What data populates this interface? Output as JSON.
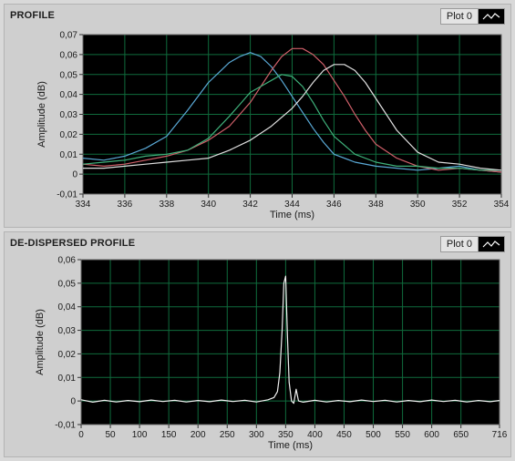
{
  "chart_data": [
    {
      "type": "line",
      "title": "PROFILE",
      "legend": {
        "label": "Plot 0",
        "placement": "top-right"
      },
      "xlabel": "Time (ms)",
      "ylabel": "Amplitude (dB)",
      "xlim": [
        334,
        354
      ],
      "ylim": [
        -0.01,
        0.07
      ],
      "xticks": [
        334,
        336,
        338,
        340,
        342,
        344,
        346,
        348,
        350,
        352,
        354
      ],
      "xtick_labels": [
        "334",
        "336",
        "338",
        "340",
        "342",
        "344",
        "346",
        "348",
        "350",
        "352",
        "354"
      ],
      "yticks": [
        -0.01,
        0,
        0.01,
        0.02,
        0.03,
        0.04,
        0.05,
        0.06,
        0.07
      ],
      "ytick_labels": [
        "-0,01",
        "0",
        "0,01",
        "0,02",
        "0,03",
        "0,04",
        "0,05",
        "0,06",
        "0,07"
      ],
      "grid": true,
      "background": "#000000",
      "grid_color": "#0f6b3c",
      "series": [
        {
          "color": "#5aa9d6",
          "x": [
            334,
            335,
            336,
            337,
            338,
            339,
            340,
            340.5,
            341,
            341.5,
            342,
            342.5,
            343,
            343.5,
            344,
            344.5,
            345,
            345.5,
            346,
            347,
            348,
            349,
            350,
            351,
            352,
            353,
            354
          ],
          "y": [
            0.008,
            0.007,
            0.009,
            0.013,
            0.019,
            0.032,
            0.046,
            0.051,
            0.056,
            0.059,
            0.061,
            0.059,
            0.054,
            0.047,
            0.039,
            0.031,
            0.023,
            0.016,
            0.01,
            0.006,
            0.004,
            0.003,
            0.002,
            0.003,
            0.004,
            0.002,
            0.001
          ]
        },
        {
          "color": "#d0606a",
          "x": [
            334,
            335,
            336,
            337,
            338,
            339,
            340,
            341,
            342,
            342.5,
            343,
            343.5,
            344,
            344.5,
            345,
            345.5,
            346,
            346.5,
            347,
            347.5,
            348,
            349,
            350,
            351,
            352,
            353,
            354
          ],
          "y": [
            0.005,
            0.004,
            0.005,
            0.007,
            0.009,
            0.012,
            0.017,
            0.024,
            0.036,
            0.044,
            0.052,
            0.059,
            0.063,
            0.063,
            0.06,
            0.055,
            0.047,
            0.039,
            0.03,
            0.022,
            0.015,
            0.008,
            0.004,
            0.002,
            0.003,
            0.002,
            0.001
          ]
        },
        {
          "color": "#3fb07a",
          "x": [
            334,
            335,
            336,
            337,
            338,
            339,
            340,
            341,
            341.5,
            342,
            342.5,
            343,
            343.5,
            344,
            344.5,
            345,
            345.5,
            346,
            347,
            348,
            349,
            350,
            351,
            352,
            353,
            354
          ],
          "y": [
            0.005,
            0.006,
            0.007,
            0.009,
            0.01,
            0.012,
            0.018,
            0.029,
            0.035,
            0.041,
            0.044,
            0.047,
            0.05,
            0.049,
            0.044,
            0.036,
            0.027,
            0.019,
            0.01,
            0.006,
            0.004,
            0.004,
            0.003,
            0.003,
            0.002,
            0.002
          ]
        },
        {
          "color": "#e0e0e0",
          "x": [
            334,
            335,
            336,
            337,
            338,
            339,
            340,
            341,
            342,
            343,
            344,
            344.5,
            345,
            345.5,
            346,
            346.5,
            347,
            347.5,
            348,
            348.5,
            349,
            350,
            351,
            352,
            353,
            354
          ],
          "y": [
            0.003,
            0.003,
            0.004,
            0.005,
            0.006,
            0.007,
            0.008,
            0.012,
            0.017,
            0.024,
            0.033,
            0.039,
            0.046,
            0.052,
            0.055,
            0.055,
            0.052,
            0.046,
            0.038,
            0.03,
            0.022,
            0.011,
            0.006,
            0.005,
            0.003,
            0.002
          ]
        }
      ]
    },
    {
      "type": "line",
      "title": "DE-DISPERSED PROFILE",
      "legend": {
        "label": "Plot 0",
        "placement": "top-right"
      },
      "xlabel": "Time (ms)",
      "ylabel": "Amplitude (dB)",
      "xlim": [
        0,
        716
      ],
      "ylim": [
        -0.01,
        0.06
      ],
      "xticks": [
        0,
        50,
        100,
        150,
        200,
        250,
        300,
        350,
        400,
        450,
        500,
        550,
        600,
        650,
        716
      ],
      "xtick_labels": [
        "0",
        "50",
        "100",
        "150",
        "200",
        "250",
        "300",
        "350",
        "400",
        "450",
        "500",
        "550",
        "600",
        "650",
        "716"
      ],
      "yticks": [
        -0.01,
        0,
        0.01,
        0.02,
        0.03,
        0.04,
        0.05,
        0.06
      ],
      "ytick_labels": [
        "-0,01",
        "0",
        "0,01",
        "0,02",
        "0,03",
        "0,04",
        "0,05",
        "0,06"
      ],
      "grid": true,
      "background": "#000000",
      "grid_color": "#0f6b3c",
      "series": [
        {
          "color": "#f0f0f0",
          "x": [
            0,
            20,
            40,
            60,
            80,
            100,
            120,
            140,
            160,
            180,
            200,
            220,
            240,
            260,
            280,
            300,
            320,
            330,
            336,
            340,
            344,
            347,
            350,
            353,
            356,
            360,
            364,
            368,
            372,
            380,
            400,
            420,
            440,
            460,
            480,
            500,
            520,
            540,
            560,
            580,
            600,
            620,
            640,
            660,
            680,
            700,
            716
          ],
          "y": [
            0.0005,
            -0.0005,
            0.0003,
            -0.0004,
            0.0002,
            -0.0003,
            0.0004,
            -0.0002,
            0.0003,
            -0.0004,
            0.0002,
            -0.0003,
            0.0004,
            -0.0002,
            0.0003,
            -0.0004,
            0.0005,
            0.0015,
            0.004,
            0.012,
            0.03,
            0.05,
            0.053,
            0.028,
            0.008,
            0.0,
            -0.001,
            0.005,
            0.0,
            -0.0005,
            0.0003,
            -0.0004,
            0.0002,
            -0.0003,
            0.0004,
            -0.0002,
            0.0003,
            -0.0004,
            0.0002,
            -0.0003,
            0.0004,
            -0.0002,
            0.0003,
            -0.0004,
            0.0002,
            -0.0003,
            0.0002
          ]
        }
      ]
    }
  ]
}
